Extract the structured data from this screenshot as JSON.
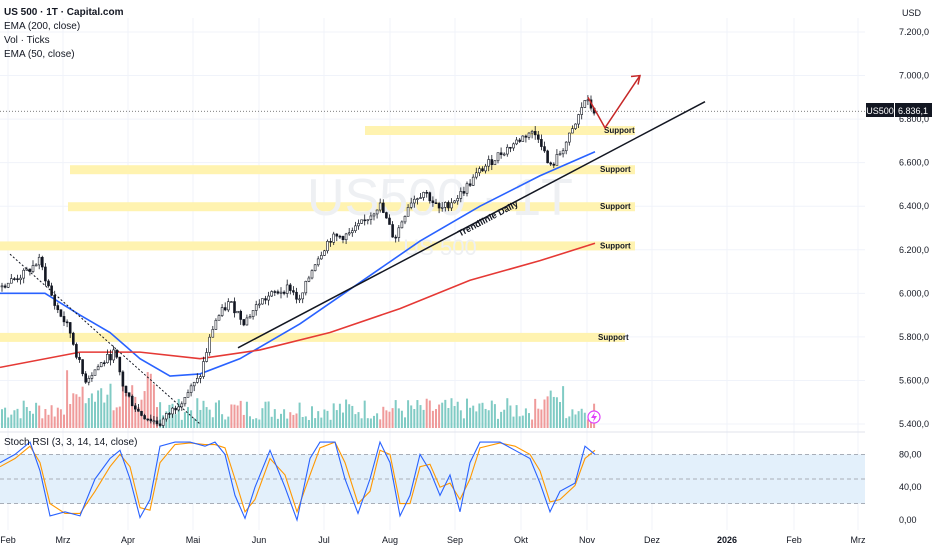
{
  "header": {
    "symbol_title": "US 500 · 1T · Capital.com",
    "indicators": [
      "EMA (200, close)",
      "Vol · Ticks",
      "EMA (50, close)"
    ],
    "currency": "USD"
  },
  "price_badge": {
    "symbol": "US500",
    "value": "6.836,1"
  },
  "watermark": {
    "symbol": "US500 · 1T",
    "name": "US 500"
  },
  "rsi_legend": "Stoch RSI (3, 3, 14, 14, close)",
  "annotations": {
    "support_label": "Support",
    "trendline_label": "Trendlinie Daily"
  },
  "colors": {
    "up": "#26a69a",
    "down": "#222222",
    "ema50": "#2962ff",
    "ema200": "#e53935",
    "support_band": "#fff3b0",
    "arrow": "#c62828",
    "stoch_k": "#2962ff",
    "stoch_d": "#ff9800",
    "rsi_band": "#e3f0fb",
    "vol_up": "#80cbc4",
    "vol_down": "#ef9a9a"
  },
  "chart_data": {
    "type": "line",
    "x_axis_labels": [
      "Feb",
      "Mrz",
      "Apr",
      "Mai",
      "Jun",
      "Jul",
      "Aug",
      "Sep",
      "Okt",
      "Nov",
      "Dez",
      "2026",
      "Feb",
      "Mrz"
    ],
    "price_axis": {
      "ticks": [
        "7.200,0",
        "7.000,0",
        "6.800,0",
        "6.600,0",
        "6.400,0",
        "6.200,0",
        "6.000,0",
        "5.800,0",
        "5.600,0",
        "5.400,0"
      ],
      "range": [
        5400,
        7260
      ]
    },
    "rsi_axis": {
      "ticks": [
        "80,00",
        "40,00",
        "0,00"
      ],
      "range": [
        0,
        100
      ],
      "band": [
        20,
        80
      ]
    },
    "last_price": 6836.1,
    "support_levels": [
      6750,
      6570,
      6400,
      6220,
      5800
    ],
    "price_series": [
      {
        "x": 0,
        "y": 6030
      },
      {
        "x": 25,
        "y": 6090
      },
      {
        "x": 40,
        "y": 6150
      },
      {
        "x": 55,
        "y": 5950
      },
      {
        "x": 70,
        "y": 5830
      },
      {
        "x": 85,
        "y": 5600
      },
      {
        "x": 100,
        "y": 5670
      },
      {
        "x": 115,
        "y": 5730
      },
      {
        "x": 125,
        "y": 5550
      },
      {
        "x": 140,
        "y": 5450
      },
      {
        "x": 160,
        "y": 5400
      },
      {
        "x": 180,
        "y": 5500
      },
      {
        "x": 200,
        "y": 5610
      },
      {
        "x": 215,
        "y": 5870
      },
      {
        "x": 230,
        "y": 5960
      },
      {
        "x": 245,
        "y": 5870
      },
      {
        "x": 260,
        "y": 5960
      },
      {
        "x": 275,
        "y": 6000
      },
      {
        "x": 290,
        "y": 6030
      },
      {
        "x": 300,
        "y": 5960
      },
      {
        "x": 315,
        "y": 6140
      },
      {
        "x": 330,
        "y": 6250
      },
      {
        "x": 350,
        "y": 6270
      },
      {
        "x": 365,
        "y": 6330
      },
      {
        "x": 380,
        "y": 6410
      },
      {
        "x": 395,
        "y": 6250
      },
      {
        "x": 410,
        "y": 6420
      },
      {
        "x": 425,
        "y": 6470
      },
      {
        "x": 440,
        "y": 6380
      },
      {
        "x": 460,
        "y": 6450
      },
      {
        "x": 480,
        "y": 6560
      },
      {
        "x": 500,
        "y": 6640
      },
      {
        "x": 515,
        "y": 6690
      },
      {
        "x": 530,
        "y": 6740
      },
      {
        "x": 540,
        "y": 6720
      },
      {
        "x": 550,
        "y": 6570
      },
      {
        "x": 560,
        "y": 6640
      },
      {
        "x": 575,
        "y": 6760
      },
      {
        "x": 585,
        "y": 6890
      },
      {
        "x": 595,
        "y": 6836
      }
    ],
    "series": [
      {
        "name": "EMA (50, close)",
        "points": [
          {
            "x": 0,
            "y": 6000
          },
          {
            "x": 45,
            "y": 6000
          },
          {
            "x": 80,
            "y": 5900
          },
          {
            "x": 110,
            "y": 5820
          },
          {
            "x": 140,
            "y": 5700
          },
          {
            "x": 170,
            "y": 5620
          },
          {
            "x": 200,
            "y": 5630
          },
          {
            "x": 240,
            "y": 5700
          },
          {
            "x": 300,
            "y": 5860
          },
          {
            "x": 360,
            "y": 6050
          },
          {
            "x": 420,
            "y": 6240
          },
          {
            "x": 480,
            "y": 6400
          },
          {
            "x": 540,
            "y": 6540
          },
          {
            "x": 595,
            "y": 6650
          }
        ]
      },
      {
        "name": "EMA (200, close)",
        "points": [
          {
            "x": 0,
            "y": 5660
          },
          {
            "x": 80,
            "y": 5730
          },
          {
            "x": 140,
            "y": 5730
          },
          {
            "x": 200,
            "y": 5700
          },
          {
            "x": 260,
            "y": 5740
          },
          {
            "x": 330,
            "y": 5820
          },
          {
            "x": 400,
            "y": 5930
          },
          {
            "x": 470,
            "y": 6060
          },
          {
            "x": 540,
            "y": 6150
          },
          {
            "x": 595,
            "y": 6230
          }
        ]
      }
    ],
    "trendline": [
      {
        "x": 238,
        "y": 5750
      },
      {
        "x": 705,
        "y": 6880
      }
    ],
    "projection_arrow": [
      {
        "x": 588,
        "y": 6900
      },
      {
        "x": 605,
        "y": 6760
      },
      {
        "x": 640,
        "y": 7000
      }
    ],
    "stoch_k": [
      {
        "x": 0,
        "y": 70
      },
      {
        "x": 15,
        "y": 80
      },
      {
        "x": 30,
        "y": 95
      },
      {
        "x": 40,
        "y": 60
      },
      {
        "x": 50,
        "y": 5
      },
      {
        "x": 65,
        "y": 10
      },
      {
        "x": 80,
        "y": 5
      },
      {
        "x": 95,
        "y": 50
      },
      {
        "x": 110,
        "y": 75
      },
      {
        "x": 120,
        "y": 85
      },
      {
        "x": 130,
        "y": 50
      },
      {
        "x": 140,
        "y": 3
      },
      {
        "x": 150,
        "y": 25
      },
      {
        "x": 160,
        "y": 90
      },
      {
        "x": 175,
        "y": 95
      },
      {
        "x": 190,
        "y": 95
      },
      {
        "x": 205,
        "y": 90
      },
      {
        "x": 215,
        "y": 95
      },
      {
        "x": 225,
        "y": 80
      },
      {
        "x": 235,
        "y": 30
      },
      {
        "x": 245,
        "y": 2
      },
      {
        "x": 255,
        "y": 40
      },
      {
        "x": 270,
        "y": 85
      },
      {
        "x": 285,
        "y": 40
      },
      {
        "x": 297,
        "y": 0
      },
      {
        "x": 310,
        "y": 75
      },
      {
        "x": 320,
        "y": 95
      },
      {
        "x": 335,
        "y": 95
      },
      {
        "x": 345,
        "y": 50
      },
      {
        "x": 358,
        "y": 8
      },
      {
        "x": 370,
        "y": 50
      },
      {
        "x": 380,
        "y": 95
      },
      {
        "x": 390,
        "y": 70
      },
      {
        "x": 400,
        "y": 5
      },
      {
        "x": 410,
        "y": 30
      },
      {
        "x": 420,
        "y": 80
      },
      {
        "x": 430,
        "y": 60
      },
      {
        "x": 440,
        "y": 30
      },
      {
        "x": 450,
        "y": 55
      },
      {
        "x": 460,
        "y": 10
      },
      {
        "x": 470,
        "y": 70
      },
      {
        "x": 480,
        "y": 95
      },
      {
        "x": 500,
        "y": 95
      },
      {
        "x": 515,
        "y": 85
      },
      {
        "x": 530,
        "y": 75
      },
      {
        "x": 540,
        "y": 45
      },
      {
        "x": 550,
        "y": 10
      },
      {
        "x": 560,
        "y": 35
      },
      {
        "x": 575,
        "y": 45
      },
      {
        "x": 585,
        "y": 90
      },
      {
        "x": 595,
        "y": 80
      }
    ],
    "stoch_d": [
      {
        "x": 0,
        "y": 65
      },
      {
        "x": 15,
        "y": 75
      },
      {
        "x": 30,
        "y": 90
      },
      {
        "x": 40,
        "y": 70
      },
      {
        "x": 50,
        "y": 20
      },
      {
        "x": 65,
        "y": 8
      },
      {
        "x": 80,
        "y": 8
      },
      {
        "x": 95,
        "y": 35
      },
      {
        "x": 110,
        "y": 65
      },
      {
        "x": 120,
        "y": 80
      },
      {
        "x": 130,
        "y": 65
      },
      {
        "x": 140,
        "y": 15
      },
      {
        "x": 150,
        "y": 12
      },
      {
        "x": 160,
        "y": 70
      },
      {
        "x": 175,
        "y": 92
      },
      {
        "x": 190,
        "y": 94
      },
      {
        "x": 205,
        "y": 92
      },
      {
        "x": 215,
        "y": 92
      },
      {
        "x": 225,
        "y": 88
      },
      {
        "x": 235,
        "y": 50
      },
      {
        "x": 245,
        "y": 10
      },
      {
        "x": 255,
        "y": 25
      },
      {
        "x": 270,
        "y": 75
      },
      {
        "x": 285,
        "y": 55
      },
      {
        "x": 297,
        "y": 10
      },
      {
        "x": 310,
        "y": 55
      },
      {
        "x": 320,
        "y": 88
      },
      {
        "x": 335,
        "y": 95
      },
      {
        "x": 345,
        "y": 70
      },
      {
        "x": 358,
        "y": 20
      },
      {
        "x": 370,
        "y": 35
      },
      {
        "x": 380,
        "y": 85
      },
      {
        "x": 390,
        "y": 80
      },
      {
        "x": 400,
        "y": 20
      },
      {
        "x": 410,
        "y": 20
      },
      {
        "x": 420,
        "y": 65
      },
      {
        "x": 430,
        "y": 68
      },
      {
        "x": 440,
        "y": 40
      },
      {
        "x": 450,
        "y": 45
      },
      {
        "x": 460,
        "y": 25
      },
      {
        "x": 470,
        "y": 50
      },
      {
        "x": 480,
        "y": 88
      },
      {
        "x": 500,
        "y": 94
      },
      {
        "x": 515,
        "y": 90
      },
      {
        "x": 530,
        "y": 80
      },
      {
        "x": 540,
        "y": 60
      },
      {
        "x": 550,
        "y": 22
      },
      {
        "x": 560,
        "y": 25
      },
      {
        "x": 575,
        "y": 42
      },
      {
        "x": 585,
        "y": 75
      },
      {
        "x": 595,
        "y": 85
      }
    ]
  }
}
